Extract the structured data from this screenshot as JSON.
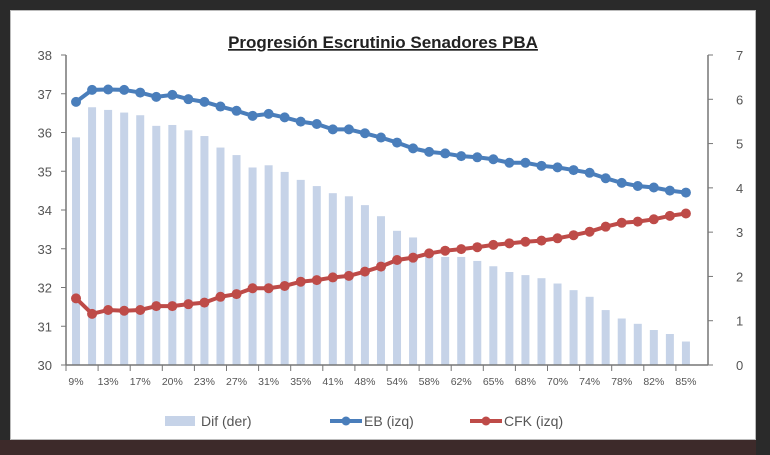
{
  "chart_data": {
    "type": "bar+line",
    "title": "Progresión Escrutinio Senadores PBA",
    "x_tick_labels": [
      "9%",
      "13%",
      "17%",
      "20%",
      "23%",
      "27%",
      "31%",
      "35%",
      "41%",
      "48%",
      "54%",
      "58%",
      "62%",
      "65%",
      "68%",
      "70%",
      "74%",
      "78%",
      "82%",
      "85%"
    ],
    "y_left": {
      "min": 30,
      "max": 38,
      "ticks": [
        30,
        31,
        32,
        33,
        34,
        35,
        36,
        37,
        38
      ]
    },
    "y_right": {
      "min": 0,
      "max": 7,
      "ticks": [
        0,
        1,
        2,
        3,
        4,
        5,
        6,
        7
      ]
    },
    "grid": false,
    "legend_placement": "bottom",
    "series": [
      {
        "name": "Dif (der)",
        "type": "bar",
        "axis": "right",
        "color": "#c6d3e8",
        "values": [
          5.14,
          5.82,
          5.76,
          5.7,
          5.64,
          5.4,
          5.42,
          5.3,
          5.17,
          4.91,
          4.74,
          4.46,
          4.51,
          4.36,
          4.18,
          4.04,
          3.88,
          3.81,
          3.61,
          3.36,
          3.03,
          2.88,
          2.56,
          2.44,
          2.44,
          2.35,
          2.23,
          2.1,
          2.03,
          1.96,
          1.84,
          1.69,
          1.54,
          1.24,
          1.05,
          0.93,
          0.79,
          0.7,
          0.53
        ]
      },
      {
        "name": "EB (izq)",
        "type": "line",
        "axis": "left",
        "color": "#4a7ebb",
        "values": [
          36.79,
          37.1,
          37.11,
          37.1,
          37.03,
          36.92,
          36.97,
          36.86,
          36.79,
          36.67,
          36.56,
          36.43,
          36.48,
          36.39,
          36.28,
          36.22,
          36.08,
          36.08,
          35.98,
          35.87,
          35.74,
          35.59,
          35.5,
          35.46,
          35.39,
          35.36,
          35.31,
          35.22,
          35.22,
          35.14,
          35.1,
          35.03,
          34.96,
          34.82,
          34.7,
          34.62,
          34.58,
          34.5,
          34.45
        ]
      },
      {
        "name": "CFK (izq)",
        "type": "line",
        "axis": "left",
        "color": "#be4b48",
        "values": [
          31.72,
          31.32,
          31.42,
          31.4,
          31.42,
          31.52,
          31.52,
          31.57,
          31.61,
          31.76,
          31.83,
          31.98,
          31.98,
          32.04,
          32.15,
          32.19,
          32.26,
          32.3,
          32.41,
          32.54,
          32.71,
          32.77,
          32.88,
          32.95,
          32.99,
          33.04,
          33.1,
          33.14,
          33.18,
          33.21,
          33.27,
          33.35,
          33.44,
          33.57,
          33.67,
          33.7,
          33.76,
          33.85,
          33.91
        ]
      }
    ]
  }
}
